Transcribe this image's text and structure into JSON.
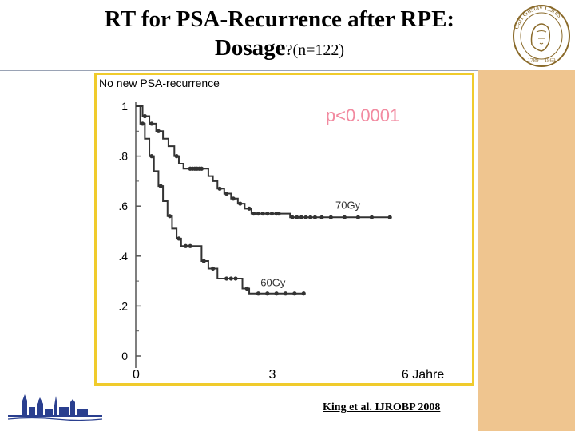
{
  "slide": {
    "title_line1": "RT for PSA-Recurrence after RPE:",
    "title_line2_bold": "Dosage",
    "title_line2_rest": "?(n=122)",
    "citation": "King et al. IJROBP 2008",
    "seal_text": "Carl Gustav Carus",
    "seal_years": "1789 – 1869"
  },
  "colors": {
    "frame": "#f0cb2c",
    "sidebar": "#efc58f",
    "line": "#333333",
    "pvalue": "#f28aa0",
    "axis": "#555555"
  },
  "chart_data": {
    "type": "line",
    "title": "",
    "ylabel": "No new PSA-recurrence",
    "xlabel": "",
    "xlim": [
      0,
      6.6
    ],
    "ylim": [
      0,
      1
    ],
    "yticks": [
      {
        "value": 1,
        "label": "1"
      },
      {
        "value": 0.8,
        "label": ".8"
      },
      {
        "value": 0.6,
        "label": ".6"
      },
      {
        "value": 0.4,
        "label": ".4"
      },
      {
        "value": 0.2,
        "label": ".2"
      },
      {
        "value": 0,
        "label": "0"
      }
    ],
    "xticks": [
      {
        "value": 0,
        "label": "0"
      },
      {
        "value": 3,
        "label": "3"
      },
      {
        "value": 6,
        "label": "6 Jahre"
      }
    ],
    "annotation": "p<0.0001",
    "series": [
      {
        "name": "70Gy",
        "label": "70Gy",
        "label_at": {
          "x": 4.4,
          "y": 0.59
        },
        "steps": [
          [
            0,
            1
          ],
          [
            0.15,
            0.96
          ],
          [
            0.3,
            0.93
          ],
          [
            0.45,
            0.9
          ],
          [
            0.6,
            0.87
          ],
          [
            0.72,
            0.84
          ],
          [
            0.85,
            0.8
          ],
          [
            0.95,
            0.77
          ],
          [
            1.05,
            0.75
          ],
          [
            1.5,
            0.75
          ],
          [
            1.6,
            0.72
          ],
          [
            1.7,
            0.7
          ],
          [
            1.8,
            0.67
          ],
          [
            1.95,
            0.65
          ],
          [
            2.1,
            0.63
          ],
          [
            2.25,
            0.61
          ],
          [
            2.4,
            0.59
          ],
          [
            2.55,
            0.57
          ],
          [
            3.2,
            0.57
          ],
          [
            3.4,
            0.555
          ],
          [
            5.6,
            0.555
          ]
        ],
        "censor_x": [
          0.2,
          0.35,
          0.5,
          0.9,
          1.2,
          1.25,
          1.3,
          1.35,
          1.4,
          1.45,
          1.85,
          2.0,
          2.15,
          2.3,
          2.5,
          2.6,
          2.7,
          2.8,
          2.9,
          3.0,
          3.1,
          3.15,
          3.45,
          3.55,
          3.65,
          3.75,
          3.85,
          3.95,
          4.1,
          4.3,
          4.6,
          4.9,
          5.2,
          5.6
        ]
      },
      {
        "name": "60Gy",
        "label": "60Gy",
        "label_at": {
          "x": 2.75,
          "y": 0.28
        },
        "steps": [
          [
            0,
            1
          ],
          [
            0.1,
            0.93
          ],
          [
            0.2,
            0.87
          ],
          [
            0.3,
            0.8
          ],
          [
            0.4,
            0.74
          ],
          [
            0.5,
            0.68
          ],
          [
            0.6,
            0.62
          ],
          [
            0.7,
            0.56
          ],
          [
            0.8,
            0.51
          ],
          [
            0.9,
            0.47
          ],
          [
            1.0,
            0.44
          ],
          [
            1.3,
            0.44
          ],
          [
            1.45,
            0.38
          ],
          [
            1.6,
            0.35
          ],
          [
            1.8,
            0.31
          ],
          [
            2.25,
            0.31
          ],
          [
            2.35,
            0.27
          ],
          [
            2.5,
            0.25
          ],
          [
            3.7,
            0.25
          ]
        ],
        "censor_x": [
          0.15,
          0.35,
          0.55,
          0.75,
          0.95,
          1.1,
          1.2,
          1.5,
          1.7,
          2.0,
          2.1,
          2.2,
          2.45,
          2.7,
          2.9,
          3.1,
          3.3,
          3.5,
          3.7
        ]
      }
    ]
  }
}
